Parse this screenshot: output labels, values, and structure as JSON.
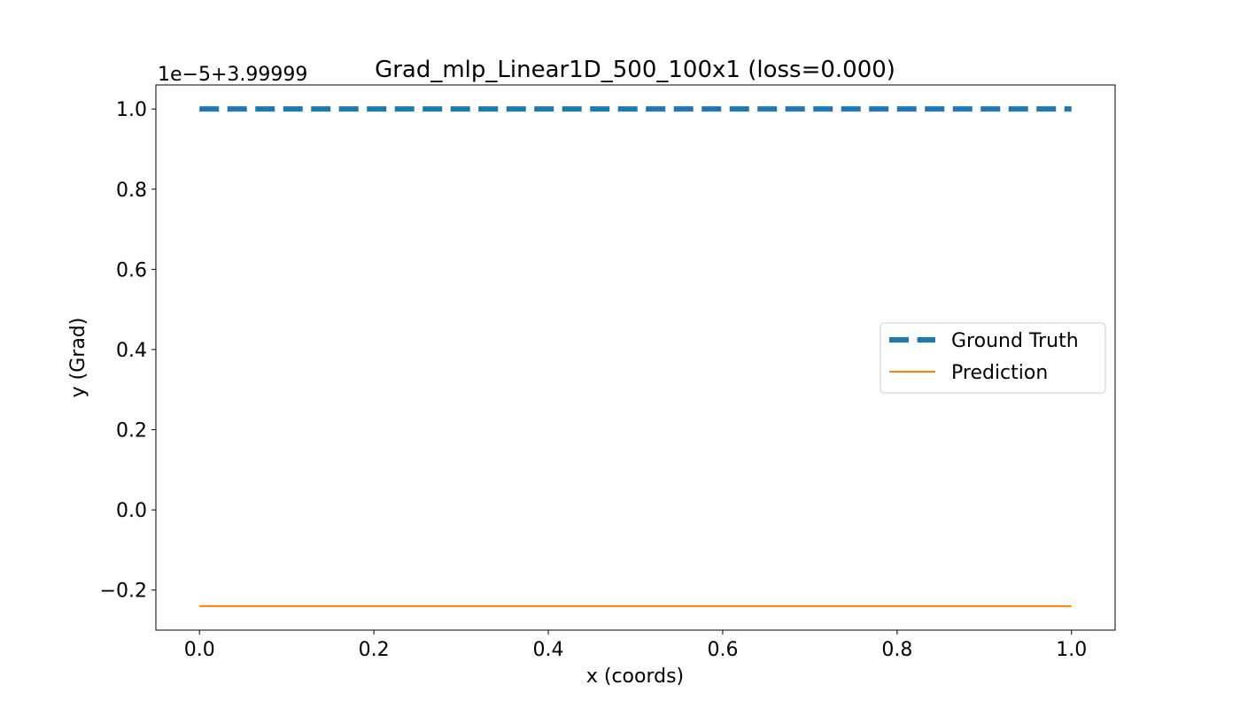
{
  "chart_data": {
    "type": "line",
    "title": "Grad_mlp_Linear1D_500_100x1 (loss=0.000)",
    "offset_label": "1e−5+3.99999",
    "xlabel": "x (coords)",
    "ylabel": "y (Grad)",
    "xlim": [
      -0.05,
      1.05
    ],
    "ylim": [
      -0.3,
      1.06
    ],
    "x_ticks": [
      0.0,
      0.2,
      0.4,
      0.6,
      0.8,
      1.0
    ],
    "x_tick_labels": [
      "0.0",
      "0.2",
      "0.4",
      "0.6",
      "0.8",
      "1.0"
    ],
    "y_ticks": [
      -0.2,
      0.0,
      0.2,
      0.4,
      0.6,
      0.8,
      1.0
    ],
    "y_tick_labels": [
      "−0.2",
      "0.0",
      "0.2",
      "0.4",
      "0.6",
      "0.8",
      "1.0"
    ],
    "grid": false,
    "legend_position": "center-right",
    "series": [
      {
        "name": "Ground Truth",
        "x": [
          0.0,
          1.0
        ],
        "y": [
          1.0,
          1.0
        ],
        "color": "#1f77b4",
        "style": "dashed"
      },
      {
        "name": "Prediction",
        "x": [
          0.0,
          1.0
        ],
        "y": [
          -0.24,
          -0.24
        ],
        "color": "#ff7f0e",
        "style": "solid"
      }
    ]
  }
}
